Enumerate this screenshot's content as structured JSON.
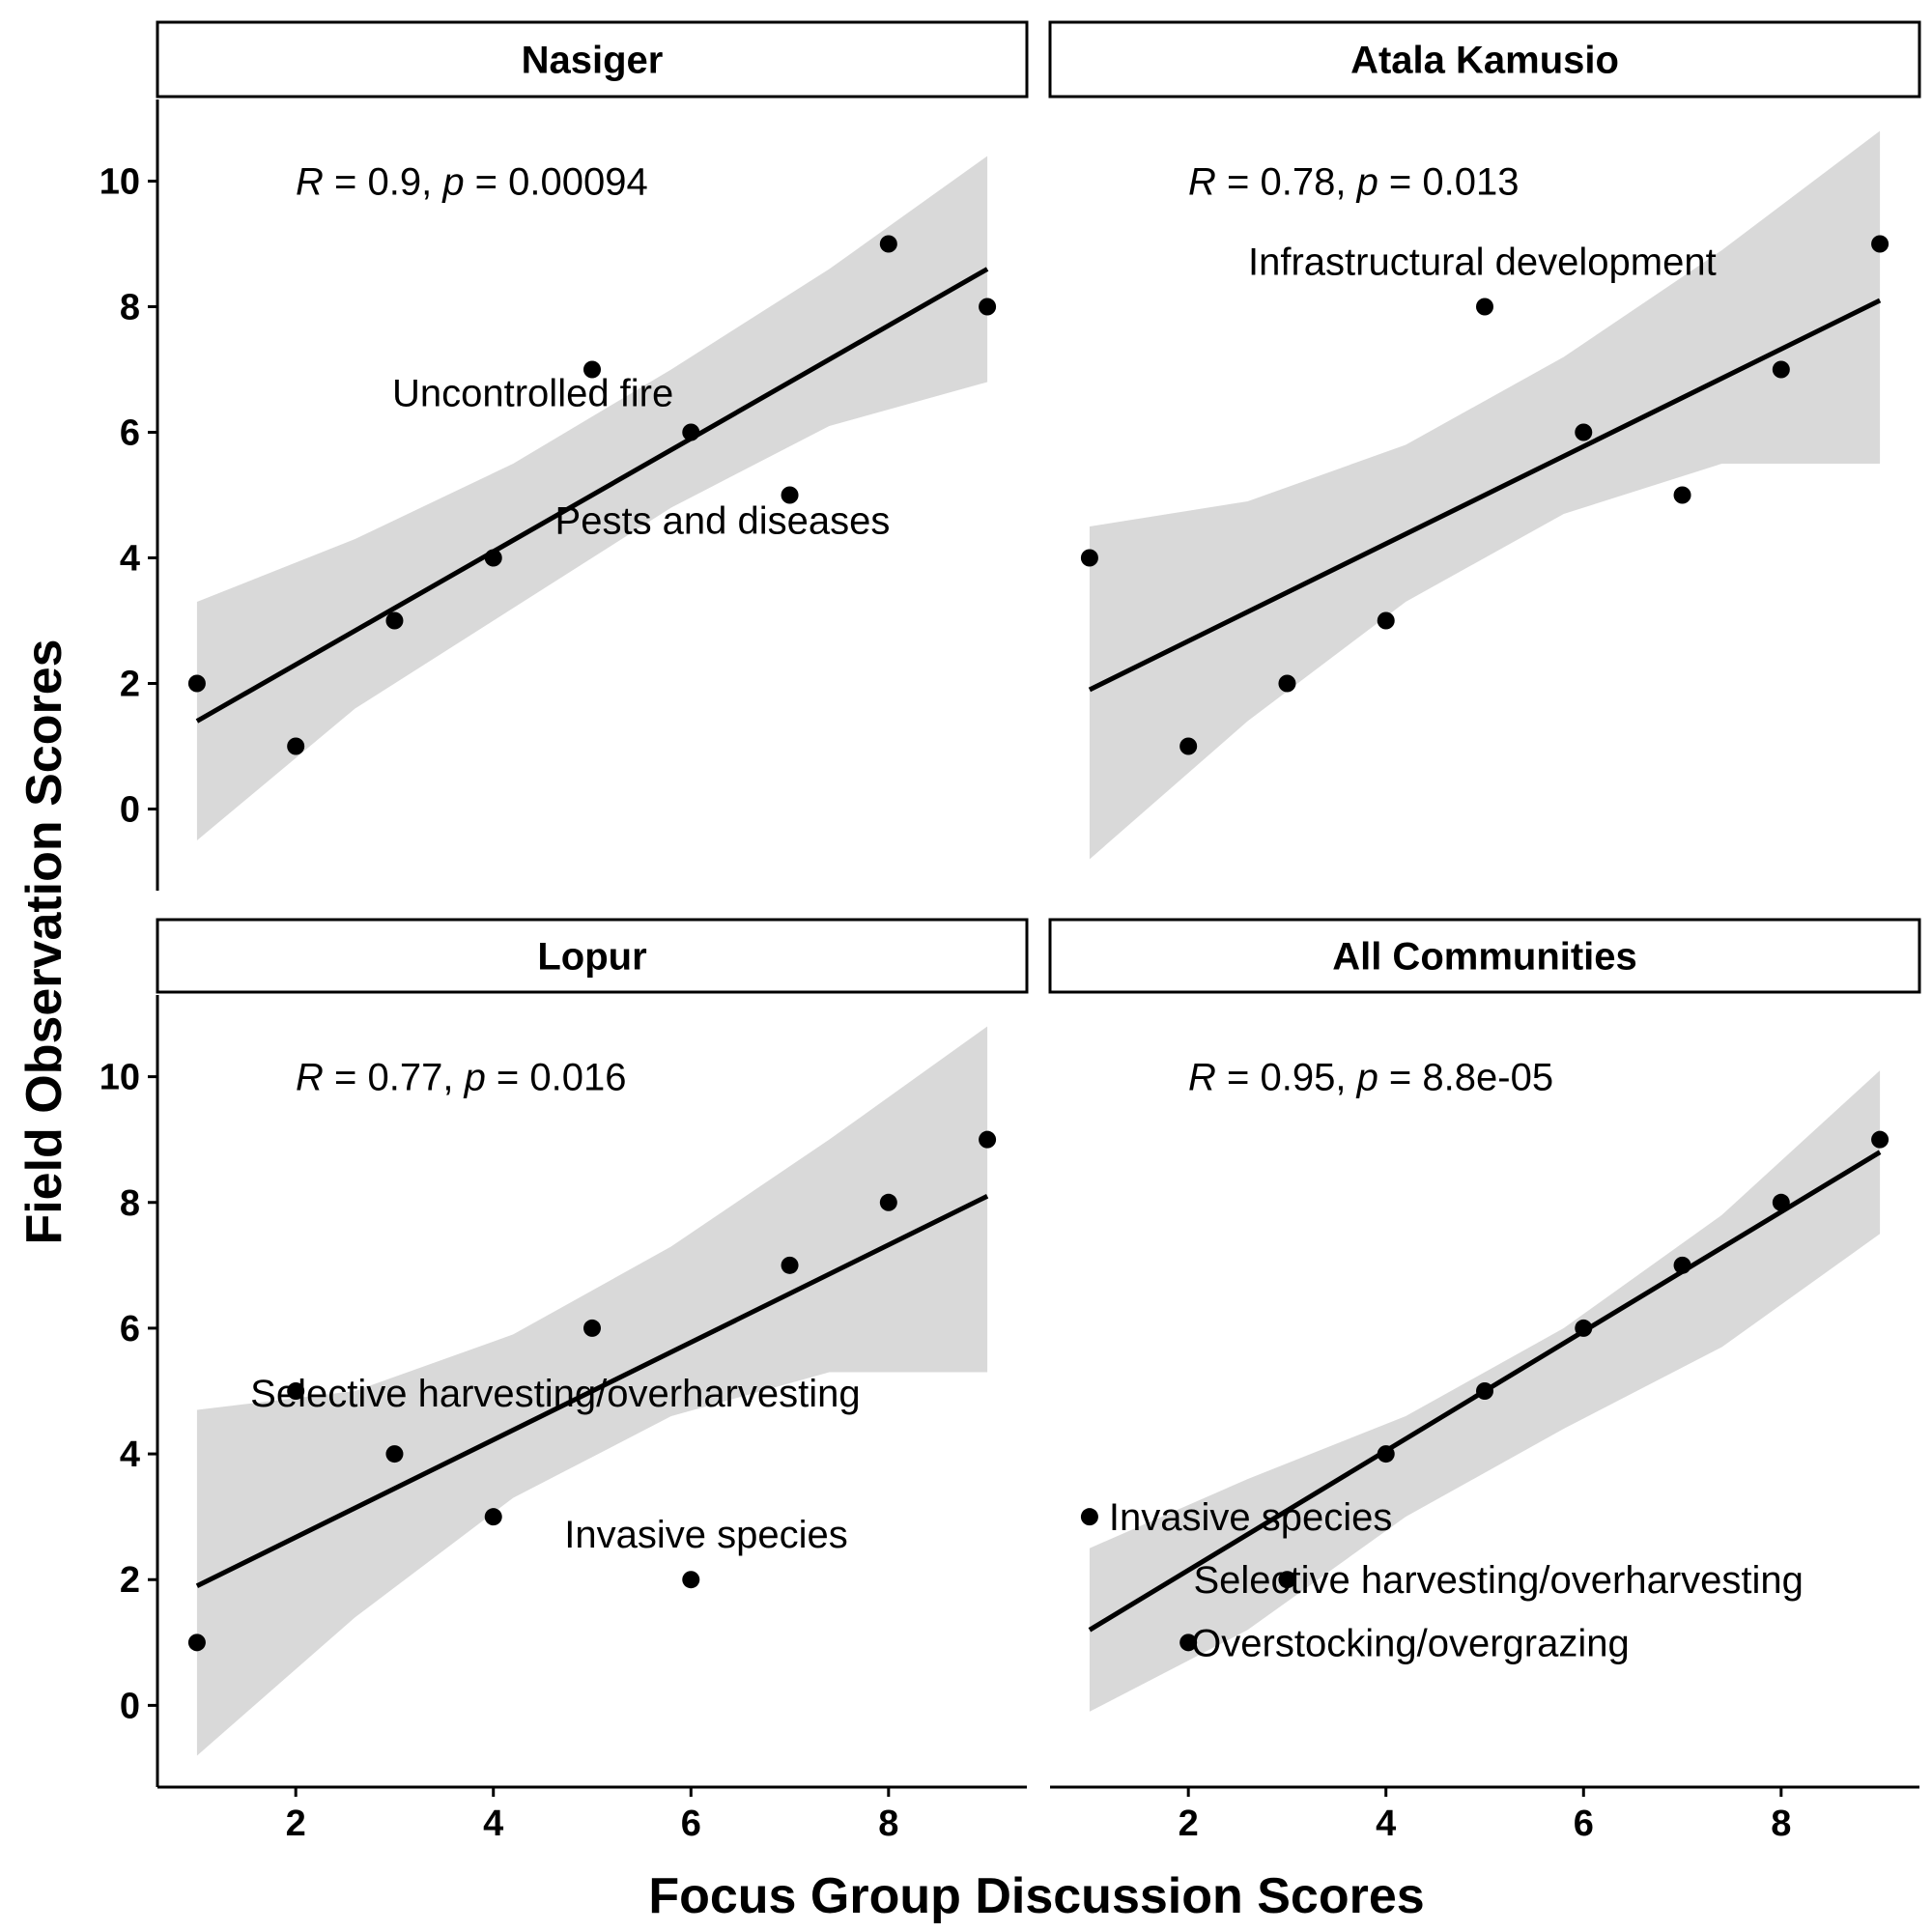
{
  "figure": {
    "xlabel": "Focus Group Discussion Scores",
    "ylabel": "Field Observation Scores"
  },
  "chart_data": [
    {
      "type": "scatter",
      "title": "Nasiger",
      "stat": {
        "r_label": "R",
        "r_value": "0.9",
        "p_label": "p",
        "p_value": "0.00094"
      },
      "xlim": [
        0.6,
        9.4
      ],
      "ylim": [
        -1.3,
        11.3
      ],
      "xticks": [
        2,
        4,
        6,
        8
      ],
      "yticks": [
        0,
        2,
        4,
        6,
        8,
        10
      ],
      "points": [
        {
          "x": 1,
          "y": 2
        },
        {
          "x": 2,
          "y": 1
        },
        {
          "x": 3,
          "y": 3
        },
        {
          "x": 4,
          "y": 4
        },
        {
          "x": 5,
          "y": 7
        },
        {
          "x": 6,
          "y": 6
        },
        {
          "x": 7,
          "y": 5
        },
        {
          "x": 8,
          "y": 9
        },
        {
          "x": 9,
          "y": 8
        }
      ],
      "fit": {
        "x0": 1,
        "y0": 1.4,
        "x1": 9,
        "y1": 8.6
      },
      "ci": {
        "upper": [
          3.3,
          4.3,
          5.5,
          7.0,
          8.6,
          10.4
        ],
        "lower": [
          -0.5,
          1.6,
          3.2,
          4.8,
          6.1,
          6.8
        ]
      },
      "annotations": [
        {
          "text": "Uncontrolled fire",
          "x": 5,
          "y": 7
        },
        {
          "text": "Pests and diseases",
          "x": 7,
          "y": 5
        }
      ]
    },
    {
      "type": "scatter",
      "title": "Atala Kamusio",
      "stat": {
        "r_label": "R",
        "r_value": "0.78",
        "p_label": "p",
        "p_value": "0.013"
      },
      "xlim": [
        0.6,
        9.4
      ],
      "ylim": [
        -1.3,
        11.3
      ],
      "xticks": [
        2,
        4,
        6,
        8
      ],
      "yticks": [
        0,
        2,
        4,
        6,
        8,
        10
      ],
      "points": [
        {
          "x": 1,
          "y": 4
        },
        {
          "x": 2,
          "y": 1
        },
        {
          "x": 3,
          "y": 2
        },
        {
          "x": 4,
          "y": 3
        },
        {
          "x": 5,
          "y": 8
        },
        {
          "x": 6,
          "y": 6
        },
        {
          "x": 7,
          "y": 5
        },
        {
          "x": 8,
          "y": 7
        },
        {
          "x": 9,
          "y": 9
        }
      ],
      "fit": {
        "x0": 1,
        "y0": 1.9,
        "x1": 9,
        "y1": 8.1
      },
      "ci": {
        "upper": [
          4.5,
          4.9,
          5.8,
          7.2,
          8.9,
          10.8
        ],
        "lower": [
          -0.8,
          1.4,
          3.3,
          4.7,
          5.5,
          5.5
        ]
      },
      "annotations": [
        {
          "text": "Infrastructural development",
          "x": 5,
          "y": 8
        }
      ]
    },
    {
      "type": "scatter",
      "title": "Lopur",
      "stat": {
        "r_label": "R",
        "r_value": "0.77",
        "p_label": "p",
        "p_value": "0.016"
      },
      "xlim": [
        0.6,
        9.4
      ],
      "ylim": [
        -1.3,
        11.3
      ],
      "xticks": [
        2,
        4,
        6,
        8
      ],
      "yticks": [
        0,
        2,
        4,
        6,
        8,
        10
      ],
      "points": [
        {
          "x": 1,
          "y": 1
        },
        {
          "x": 2,
          "y": 5
        },
        {
          "x": 3,
          "y": 4
        },
        {
          "x": 4,
          "y": 3
        },
        {
          "x": 5,
          "y": 6
        },
        {
          "x": 6,
          "y": 2
        },
        {
          "x": 7,
          "y": 7
        },
        {
          "x": 8,
          "y": 8
        },
        {
          "x": 9,
          "y": 9
        }
      ],
      "fit": {
        "x0": 1,
        "y0": 1.9,
        "x1": 9,
        "y1": 8.1
      },
      "ci": {
        "upper": [
          4.7,
          5.0,
          5.9,
          7.3,
          9.0,
          10.8
        ],
        "lower": [
          -0.8,
          1.4,
          3.3,
          4.6,
          5.3,
          5.3
        ]
      },
      "annotations": [
        {
          "text": "Selective harvesting/overharvesting",
          "x": 2,
          "y": 5
        },
        {
          "text": "Invasive species",
          "x": 6,
          "y": 2
        }
      ]
    },
    {
      "type": "scatter",
      "title": "All Communities",
      "stat": {
        "r_label": "R",
        "r_value": "0.95",
        "p_label": "p",
        "p_value": "8.8e-05"
      },
      "xlim": [
        0.6,
        9.4
      ],
      "ylim": [
        -1.3,
        11.3
      ],
      "xticks": [
        2,
        4,
        6,
        8
      ],
      "yticks": [
        0,
        2,
        4,
        6,
        8,
        10
      ],
      "points": [
        {
          "x": 1,
          "y": 3
        },
        {
          "x": 2,
          "y": 1
        },
        {
          "x": 3,
          "y": 2
        },
        {
          "x": 4,
          "y": 4
        },
        {
          "x": 5,
          "y": 5
        },
        {
          "x": 6,
          "y": 6
        },
        {
          "x": 7,
          "y": 7
        },
        {
          "x": 8,
          "y": 8
        },
        {
          "x": 9,
          "y": 9
        }
      ],
      "fit": {
        "x0": 1,
        "y0": 1.2,
        "x1": 9,
        "y1": 8.8
      },
      "ci": {
        "upper": [
          2.5,
          3.6,
          4.6,
          6.0,
          7.8,
          10.1
        ],
        "lower": [
          -0.1,
          1.2,
          3.0,
          4.4,
          5.7,
          7.5
        ]
      },
      "annotations": [
        {
          "text": "Invasive species",
          "x": 1,
          "y": 3
        },
        {
          "text": "Selective harvesting/overharvesting",
          "x": 3,
          "y": 2
        },
        {
          "text": "Overstocking/overgrazing",
          "x": 2,
          "y": 1
        }
      ]
    }
  ]
}
